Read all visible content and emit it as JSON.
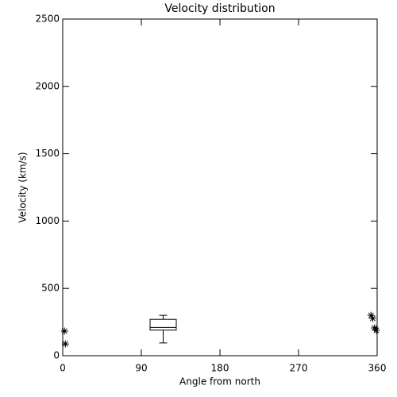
{
  "chart_data": {
    "type": "scatter",
    "title": "Velocity distribution",
    "x_label": "Angle from north",
    "y_label": "Velocity (km/s)",
    "xlim": [
      0,
      360
    ],
    "xticks": [
      0,
      90,
      180,
      270,
      360
    ],
    "ylim": [
      0,
      2500
    ],
    "yticks": [
      0,
      500,
      1000,
      1500,
      2000,
      2500
    ],
    "color": "#000000",
    "series": [
      {
        "x": [
          2,
          3,
          353,
          355,
          357,
          359
        ],
        "values": [
          183,
          88,
          300,
          277,
          206,
          189
        ]
      }
    ],
    "boxes": [
      {
        "x": 115,
        "width": 30,
        "whislo": 95,
        "q1": 190,
        "med": 210,
        "q3": 270,
        "whishi": 300
      }
    ]
  }
}
